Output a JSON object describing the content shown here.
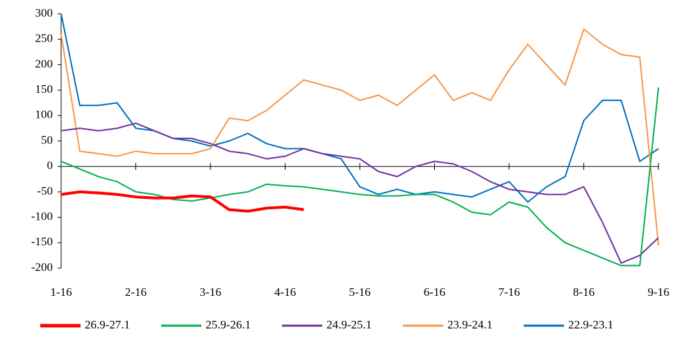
{
  "chart_data": {
    "type": "line",
    "categories": [
      "1-16",
      null,
      null,
      null,
      "2-16",
      null,
      null,
      null,
      "3-16",
      null,
      null,
      null,
      "4-16",
      null,
      null,
      null,
      "5-16",
      null,
      null,
      null,
      "6-16",
      null,
      null,
      null,
      "7-16",
      null,
      null,
      null,
      "8-16",
      null,
      null,
      null,
      "9-16"
    ],
    "ylim": [
      -200,
      300
    ],
    "yticks": [
      -200,
      -150,
      -100,
      -50,
      0,
      50,
      100,
      150,
      200,
      250,
      300
    ],
    "grid": false,
    "legend": "bottom",
    "series": [
      {
        "name": "26.9-27.1",
        "color": "#ff0000",
        "width": 4,
        "values": [
          -55,
          -50,
          -52,
          -55,
          -60,
          -62,
          -62,
          -58,
          -60,
          -85,
          -88,
          -82,
          -80,
          -85,
          null,
          null,
          null,
          null,
          null,
          null,
          null,
          null,
          null,
          null,
          null,
          null,
          null,
          null,
          null,
          null,
          null,
          null,
          null
        ]
      },
      {
        "name": "25.9-26.1",
        "color": "#00b050",
        "width": 2,
        "values": [
          10,
          -5,
          -20,
          -30,
          -50,
          -55,
          -65,
          -68,
          -62,
          -55,
          -50,
          -35,
          -38,
          -40,
          -45,
          -50,
          -55,
          -58,
          -58,
          -55,
          -55,
          -70,
          -90,
          -95,
          -70,
          -80,
          -120,
          -150,
          -165,
          -180,
          -195,
          -195,
          155
        ]
      },
      {
        "name": "24.9-25.1",
        "color": "#7030a0",
        "width": 2,
        "values": [
          70,
          75,
          70,
          75,
          85,
          70,
          55,
          55,
          45,
          30,
          25,
          15,
          20,
          35,
          25,
          20,
          15,
          -10,
          -20,
          0,
          10,
          5,
          -10,
          -30,
          -45,
          -50,
          -55,
          -55,
          -40,
          -110,
          -190,
          -175,
          -140
        ]
      },
      {
        "name": "23.9-24.1",
        "color": "#f79646",
        "width": 2,
        "values": [
          260,
          30,
          25,
          20,
          30,
          25,
          25,
          25,
          35,
          95,
          90,
          110,
          140,
          170,
          160,
          150,
          130,
          140,
          120,
          150,
          180,
          130,
          145,
          130,
          190,
          240,
          200,
          160,
          270,
          240,
          220,
          215,
          -155
        ]
      },
      {
        "name": "22.9-23.1",
        "color": "#0070c0",
        "width": 2,
        "values": [
          300,
          120,
          120,
          125,
          75,
          70,
          55,
          50,
          40,
          50,
          65,
          45,
          35,
          35,
          25,
          15,
          -40,
          -55,
          -45,
          -55,
          -50,
          -55,
          -60,
          -45,
          -30,
          -70,
          -40,
          -20,
          90,
          130,
          130,
          10,
          35
        ]
      }
    ]
  }
}
